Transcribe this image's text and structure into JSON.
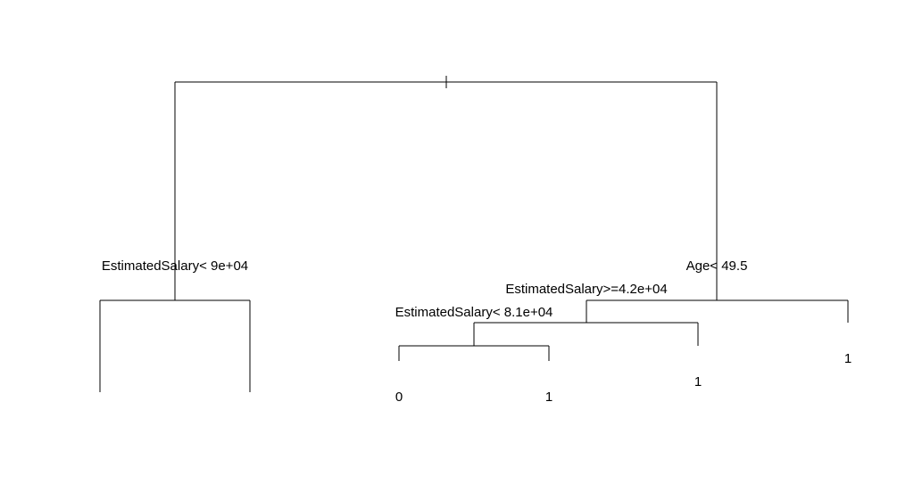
{
  "tree": {
    "root_split": "",
    "splits": {
      "left": "EstimatedSalary< 9e+04",
      "right": "Age< 49.5",
      "right_left": "EstimatedSalary>=4.2e+04",
      "right_left_left": "EstimatedSalary< 8.1e+04"
    },
    "leaves": {
      "rll_left": "0",
      "rll_right": "1",
      "rl_right": "1",
      "r_right": "1"
    }
  }
}
